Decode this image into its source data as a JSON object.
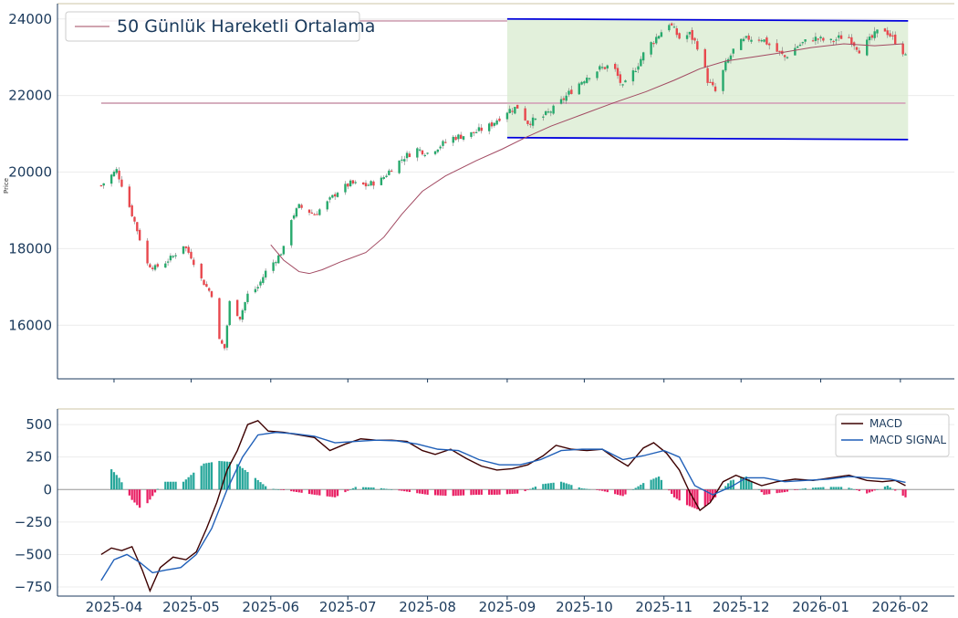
{
  "chart_data": [
    {
      "type": "candlestick",
      "ylabel": "Price",
      "ylim": [
        14600,
        24400
      ],
      "yticks": [
        "16000",
        "18000",
        "20000",
        "22000",
        "24000"
      ],
      "xticks": [
        "2025-04",
        "2025-05",
        "2025-06",
        "2025-07",
        "2025-08",
        "2025-09",
        "2025-10",
        "2025-11",
        "2025-12",
        "2026-01",
        "2026-02"
      ],
      "colors": {
        "up": "#26a96c",
        "down": "#e8474d",
        "ma": "#a24a62",
        "channel": "#0000dd",
        "channel_fill": "#d8ebcf",
        "level": "#d6aebe"
      },
      "legend": {
        "label": "50 Günlük Hareketli Ortalama",
        "position": "top-left"
      },
      "date_range": [
        "2025-03-27",
        "2026-02-03"
      ],
      "close_path": [
        [
          "2025-03-27",
          19650
        ],
        [
          "2025-04-02",
          20050
        ],
        [
          "2025-04-05",
          19500
        ],
        [
          "2025-04-09",
          18700
        ],
        [
          "2025-04-14",
          17600
        ],
        [
          "2025-04-17",
          17500
        ],
        [
          "2025-04-21",
          17650
        ],
        [
          "2025-04-24",
          17800
        ],
        [
          "2025-04-28",
          18100
        ],
        [
          "2025-05-01",
          17800
        ],
        [
          "2025-05-05",
          17200
        ],
        [
          "2025-05-09",
          16800
        ],
        [
          "2025-05-12",
          15600
        ],
        [
          "2025-05-14",
          15400
        ],
        [
          "2025-05-16",
          16600
        ],
        [
          "2025-05-20",
          16200
        ],
        [
          "2025-05-23",
          16800
        ],
        [
          "2025-05-27",
          17000
        ],
        [
          "2025-05-30",
          17400
        ],
        [
          "2025-06-04",
          17800
        ],
        [
          "2025-06-06",
          18000
        ],
        [
          "2025-06-09",
          18800
        ],
        [
          "2025-06-12",
          19100
        ],
        [
          "2025-06-18",
          18900
        ],
        [
          "2025-06-23",
          19200
        ],
        [
          "2025-06-27",
          19500
        ],
        [
          "2025-07-02",
          19700
        ],
        [
          "2025-07-08",
          19650
        ],
        [
          "2025-07-14",
          19800
        ],
        [
          "2025-07-18",
          20100
        ],
        [
          "2025-07-23",
          20400
        ],
        [
          "2025-07-28",
          20600
        ],
        [
          "2025-08-01",
          20500
        ],
        [
          "2025-08-06",
          20700
        ],
        [
          "2025-08-11",
          20900
        ],
        [
          "2025-08-18",
          21000
        ],
        [
          "2025-08-25",
          21200
        ],
        [
          "2025-09-01",
          21600
        ],
        [
          "2025-09-05",
          21700
        ],
        [
          "2025-09-09",
          21300
        ],
        [
          "2025-09-14",
          21400
        ],
        [
          "2025-09-20",
          21700
        ],
        [
          "2025-09-27",
          22200
        ],
        [
          "2025-10-02",
          22500
        ],
        [
          "2025-10-07",
          22700
        ],
        [
          "2025-10-12",
          22800
        ],
        [
          "2025-10-16",
          22200
        ],
        [
          "2025-10-20",
          22600
        ],
        [
          "2025-10-25",
          23200
        ],
        [
          "2025-10-30",
          23600
        ],
        [
          "2025-11-03",
          23900
        ],
        [
          "2025-11-07",
          23500
        ],
        [
          "2025-11-11",
          23600
        ],
        [
          "2025-11-15",
          23200
        ],
        [
          "2025-11-18",
          22400
        ],
        [
          "2025-11-21",
          22100
        ],
        [
          "2025-11-25",
          22800
        ],
        [
          "2025-11-29",
          23300
        ],
        [
          "2025-12-04",
          23500
        ],
        [
          "2025-12-09",
          23500
        ],
        [
          "2025-12-14",
          23200
        ],
        [
          "2025-12-18",
          23000
        ],
        [
          "2025-12-23",
          23300
        ],
        [
          "2025-12-29",
          23500
        ],
        [
          "2026-01-05",
          23400
        ],
        [
          "2026-01-11",
          23600
        ],
        [
          "2026-01-16",
          23200
        ],
        [
          "2026-01-21",
          23500
        ],
        [
          "2026-01-25",
          23800
        ],
        [
          "2026-01-29",
          23500
        ],
        [
          "2026-02-01",
          23300
        ],
        [
          "2026-02-03",
          23000
        ]
      ],
      "moving_average": [
        [
          "2025-06-01",
          18100
        ],
        [
          "2025-06-06",
          17700
        ],
        [
          "2025-06-12",
          17400
        ],
        [
          "2025-06-16",
          17350
        ],
        [
          "2025-06-21",
          17450
        ],
        [
          "2025-06-28",
          17650
        ],
        [
          "2025-07-08",
          17900
        ],
        [
          "2025-07-15",
          18300
        ],
        [
          "2025-07-22",
          18900
        ],
        [
          "2025-07-30",
          19500
        ],
        [
          "2025-08-08",
          19900
        ],
        [
          "2025-08-20",
          20300
        ],
        [
          "2025-08-30",
          20600
        ],
        [
          "2025-09-08",
          20900
        ],
        [
          "2025-09-18",
          21200
        ],
        [
          "2025-09-30",
          21500
        ],
        [
          "2025-10-12",
          21800
        ],
        [
          "2025-10-25",
          22100
        ],
        [
          "2025-11-05",
          22400
        ],
        [
          "2025-11-15",
          22700
        ],
        [
          "2025-11-25",
          22900
        ],
        [
          "2025-12-05",
          23000
        ],
        [
          "2025-12-15",
          23100
        ],
        [
          "2025-12-28",
          23250
        ],
        [
          "2026-01-10",
          23350
        ],
        [
          "2026-01-22",
          23300
        ],
        [
          "2026-02-02",
          23350
        ]
      ],
      "horizontal_lines": [
        {
          "y": 21800,
          "x_start": "2025-03-27",
          "x_end": "2026-02-03"
        },
        {
          "y": 23950,
          "x_start": "2025-03-27",
          "x_end": "2025-09-01"
        }
      ],
      "channel": {
        "x_start": "2025-09-01",
        "x_end": "2026-02-04",
        "upper": [
          24000,
          23950
        ],
        "lower": [
          20900,
          20850
        ]
      }
    },
    {
      "type": "line+bar",
      "ylim": [
        -820,
        620
      ],
      "yticks": [
        "−750",
        "−500",
        "−250",
        "0",
        "250",
        "500"
      ],
      "legend_position": "top-right",
      "series": [
        {
          "name": "MACD",
          "color": "#3d0000",
          "points": [
            [
              "2025-03-27",
              -500
            ],
            [
              "2025-03-31",
              -450
            ],
            [
              "2025-04-04",
              -470
            ],
            [
              "2025-04-08",
              -440
            ],
            [
              "2025-04-12",
              -620
            ],
            [
              "2025-04-15",
              -780
            ],
            [
              "2025-04-19",
              -600
            ],
            [
              "2025-04-24",
              -520
            ],
            [
              "2025-04-29",
              -540
            ],
            [
              "2025-05-03",
              -480
            ],
            [
              "2025-05-07",
              -300
            ],
            [
              "2025-05-11",
              -100
            ],
            [
              "2025-05-15",
              150
            ],
            [
              "2025-05-19",
              300
            ],
            [
              "2025-05-23",
              500
            ],
            [
              "2025-05-27",
              530
            ],
            [
              "2025-05-31",
              450
            ],
            [
              "2025-06-06",
              440
            ],
            [
              "2025-06-12",
              420
            ],
            [
              "2025-06-18",
              400
            ],
            [
              "2025-06-24",
              300
            ],
            [
              "2025-06-30",
              350
            ],
            [
              "2025-07-06",
              390
            ],
            [
              "2025-07-12",
              380
            ],
            [
              "2025-07-18",
              380
            ],
            [
              "2025-07-24",
              370
            ],
            [
              "2025-07-30",
              300
            ],
            [
              "2025-08-04",
              270
            ],
            [
              "2025-08-10",
              310
            ],
            [
              "2025-08-16",
              240
            ],
            [
              "2025-08-22",
              180
            ],
            [
              "2025-08-28",
              150
            ],
            [
              "2025-09-03",
              160
            ],
            [
              "2025-09-09",
              190
            ],
            [
              "2025-09-15",
              260
            ],
            [
              "2025-09-20",
              340
            ],
            [
              "2025-09-26",
              310
            ],
            [
              "2025-10-02",
              300
            ],
            [
              "2025-10-08",
              310
            ],
            [
              "2025-10-13",
              240
            ],
            [
              "2025-10-18",
              180
            ],
            [
              "2025-10-24",
              320
            ],
            [
              "2025-10-28",
              360
            ],
            [
              "2025-11-02",
              280
            ],
            [
              "2025-11-07",
              150
            ],
            [
              "2025-11-11",
              -20
            ],
            [
              "2025-11-15",
              -160
            ],
            [
              "2025-11-19",
              -100
            ],
            [
              "2025-11-24",
              60
            ],
            [
              "2025-11-29",
              110
            ],
            [
              "2025-12-04",
              70
            ],
            [
              "2025-12-09",
              30
            ],
            [
              "2025-12-15",
              60
            ],
            [
              "2025-12-22",
              80
            ],
            [
              "2025-12-29",
              70
            ],
            [
              "2026-01-05",
              90
            ],
            [
              "2026-01-12",
              110
            ],
            [
              "2026-01-19",
              70
            ],
            [
              "2026-01-25",
              60
            ],
            [
              "2026-01-30",
              70
            ],
            [
              "2026-02-03",
              30
            ]
          ]
        },
        {
          "name": "MACD SIGNAL",
          "color": "#1f5fb8",
          "points": [
            [
              "2025-03-27",
              -700
            ],
            [
              "2025-04-01",
              -540
            ],
            [
              "2025-04-06",
              -500
            ],
            [
              "2025-04-11",
              -560
            ],
            [
              "2025-04-16",
              -640
            ],
            [
              "2025-04-21",
              -620
            ],
            [
              "2025-04-27",
              -600
            ],
            [
              "2025-05-03",
              -500
            ],
            [
              "2025-05-09",
              -300
            ],
            [
              "2025-05-15",
              0
            ],
            [
              "2025-05-21",
              250
            ],
            [
              "2025-05-27",
              420
            ],
            [
              "2025-06-03",
              440
            ],
            [
              "2025-06-10",
              430
            ],
            [
              "2025-06-18",
              410
            ],
            [
              "2025-06-26",
              360
            ],
            [
              "2025-07-04",
              370
            ],
            [
              "2025-07-12",
              380
            ],
            [
              "2025-07-20",
              375
            ],
            [
              "2025-07-28",
              350
            ],
            [
              "2025-08-05",
              310
            ],
            [
              "2025-08-13",
              300
            ],
            [
              "2025-08-21",
              230
            ],
            [
              "2025-08-29",
              190
            ],
            [
              "2025-09-06",
              190
            ],
            [
              "2025-09-14",
              230
            ],
            [
              "2025-09-22",
              300
            ],
            [
              "2025-09-30",
              310
            ],
            [
              "2025-10-08",
              310
            ],
            [
              "2025-10-16",
              230
            ],
            [
              "2025-10-24",
              260
            ],
            [
              "2025-11-01",
              300
            ],
            [
              "2025-11-07",
              250
            ],
            [
              "2025-11-13",
              30
            ],
            [
              "2025-11-20",
              -40
            ],
            [
              "2025-11-27",
              20
            ],
            [
              "2025-12-03",
              90
            ],
            [
              "2025-12-10",
              90
            ],
            [
              "2025-12-18",
              60
            ],
            [
              "2025-12-26",
              70
            ],
            [
              "2026-01-04",
              80
            ],
            [
              "2026-01-12",
              100
            ],
            [
              "2026-01-20",
              90
            ],
            [
              "2026-01-28",
              80
            ],
            [
              "2026-02-03",
              55
            ]
          ]
        }
      ],
      "histogram_colors": {
        "positive": "#26a69a",
        "negative": "#e91e63"
      },
      "histogram": [
        [
          "2025-03-29",
          200
        ],
        [
          "2025-04-03",
          90
        ],
        [
          "2025-04-08",
          -80
        ],
        [
          "2025-04-12",
          -160
        ],
        [
          "2025-04-20",
          60
        ],
        [
          "2025-04-28",
          60
        ],
        [
          "2025-05-06",
          200
        ],
        [
          "2025-05-12",
          220
        ],
        [
          "2025-05-18",
          210
        ],
        [
          "2025-05-24",
          120
        ],
        [
          "2025-05-31",
          10
        ],
        [
          "2025-06-08",
          -10
        ],
        [
          "2025-06-18",
          -40
        ],
        [
          "2025-06-26",
          -60
        ],
        [
          "2025-07-04",
          20
        ],
        [
          "2025-07-12",
          15
        ],
        [
          "2025-07-22",
          -10
        ],
        [
          "2025-08-01",
          -40
        ],
        [
          "2025-08-10",
          -50
        ],
        [
          "2025-08-20",
          -40
        ],
        [
          "2025-08-28",
          -40
        ],
        [
          "2025-09-06",
          -30
        ],
        [
          "2025-09-14",
          40
        ],
        [
          "2025-09-22",
          60
        ],
        [
          "2025-09-30",
          10
        ],
        [
          "2025-10-08",
          -10
        ],
        [
          "2025-10-16",
          -50
        ],
        [
          "2025-10-24",
          50
        ],
        [
          "2025-10-30",
          100
        ],
        [
          "2025-11-05",
          -60
        ],
        [
          "2025-11-10",
          -120
        ],
        [
          "2025-11-15",
          -160
        ],
        [
          "2025-11-21",
          -60
        ],
        [
          "2025-11-27",
          70
        ],
        [
          "2025-12-03",
          100
        ],
        [
          "2025-12-10",
          -40
        ],
        [
          "2025-12-18",
          -20
        ],
        [
          "2025-12-26",
          10
        ],
        [
          "2026-01-03",
          20
        ],
        [
          "2026-01-11",
          20
        ],
        [
          "2026-01-19",
          -30
        ],
        [
          "2026-01-27",
          30
        ],
        [
          "2026-02-03",
          -60
        ]
      ]
    }
  ]
}
